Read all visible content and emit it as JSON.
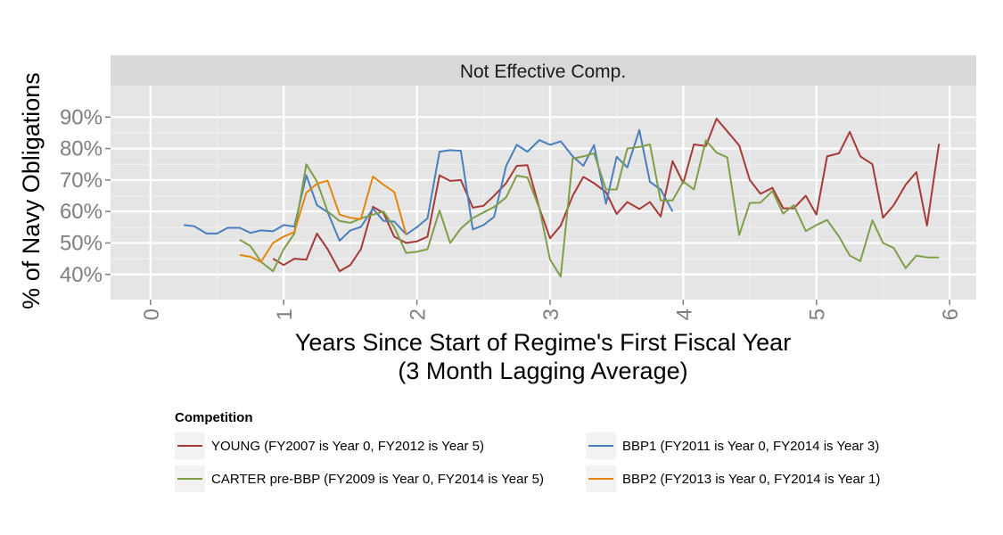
{
  "chart_data": {
    "type": "line",
    "facet_title": "Not Effective Comp.",
    "xlabel_line1": "Years Since Start of Regime's First Fiscal Year",
    "xlabel_line2": "(3 Month Lagging Average)",
    "ylabel": "% of Navy Obligations",
    "xlim": [
      -0.3,
      6.2
    ],
    "ylim": [
      0.32,
      1.0
    ],
    "x_ticks": [
      0,
      1,
      2,
      3,
      4,
      5,
      6
    ],
    "x_tick_labels": [
      "0",
      "1",
      "2",
      "3",
      "4",
      "5",
      "6"
    ],
    "y_ticks": [
      0.4,
      0.5,
      0.6,
      0.7,
      0.8,
      0.9
    ],
    "y_tick_labels": [
      "40%",
      "50%",
      "60%",
      "70%",
      "80%",
      "90%"
    ],
    "grid": true,
    "legend_position": "bottom",
    "legend_title": "Competition",
    "series": [
      {
        "name": "YOUNG (FY2007 is Year 0, FY2012 is Year 5)",
        "color": "#a63a36",
        "x": [
          0.92,
          1.0,
          1.08,
          1.17,
          1.25,
          1.33,
          1.42,
          1.5,
          1.58,
          1.67,
          1.75,
          1.83,
          1.92,
          2.0,
          2.08,
          2.17,
          2.25,
          2.33,
          2.42,
          2.5,
          2.58,
          2.67,
          2.75,
          2.83,
          2.92,
          3.0,
          3.08,
          3.17,
          3.25,
          3.33,
          3.42,
          3.5,
          3.58,
          3.67,
          3.75,
          3.83,
          3.92,
          4.0,
          4.08,
          4.17,
          4.25,
          4.33,
          4.42,
          4.5,
          4.58,
          4.67,
          4.75,
          4.83,
          4.92,
          5.0,
          5.08,
          5.17,
          5.25,
          5.33,
          5.42,
          5.5,
          5.58,
          5.67,
          5.75,
          5.83,
          5.92
        ],
        "y": [
          0.45,
          0.43,
          0.45,
          0.447,
          0.53,
          0.48,
          0.41,
          0.43,
          0.48,
          0.615,
          0.595,
          0.52,
          0.5,
          0.505,
          0.52,
          0.715,
          0.697,
          0.7,
          0.612,
          0.618,
          0.65,
          0.69,
          0.745,
          0.747,
          0.61,
          0.515,
          0.555,
          0.65,
          0.71,
          0.69,
          0.661,
          0.592,
          0.63,
          0.608,
          0.63,
          0.584,
          0.76,
          0.69,
          0.813,
          0.808,
          0.895,
          0.855,
          0.81,
          0.7,
          0.656,
          0.675,
          0.61,
          0.61,
          0.65,
          0.59,
          0.775,
          0.785,
          0.853,
          0.775,
          0.75,
          0.58,
          0.62,
          0.685,
          0.725,
          0.555,
          0.815
        ]
      },
      {
        "name": "BBP1 (FY2011 is Year 0, FY2014 is Year 3)",
        "color": "#4a7fbd",
        "x": [
          0.25,
          0.33,
          0.42,
          0.5,
          0.58,
          0.67,
          0.75,
          0.83,
          0.92,
          1.0,
          1.08,
          1.17,
          1.25,
          1.33,
          1.42,
          1.5,
          1.58,
          1.67,
          1.75,
          1.83,
          1.92,
          2.0,
          2.08,
          2.17,
          2.25,
          2.33,
          2.42,
          2.5,
          2.58,
          2.67,
          2.75,
          2.83,
          2.92,
          3.0,
          3.08,
          3.17,
          3.25,
          3.33,
          3.42,
          3.5,
          3.58,
          3.67,
          3.75,
          3.83,
          3.92
        ],
        "y": [
          0.557,
          0.553,
          0.53,
          0.53,
          0.548,
          0.548,
          0.532,
          0.54,
          0.537,
          0.557,
          0.552,
          0.715,
          0.62,
          0.598,
          0.507,
          0.54,
          0.551,
          0.609,
          0.57,
          0.568,
          0.527,
          0.55,
          0.578,
          0.79,
          0.795,
          0.793,
          0.543,
          0.557,
          0.583,
          0.745,
          0.812,
          0.79,
          0.827,
          0.812,
          0.823,
          0.775,
          0.745,
          0.811,
          0.625,
          0.774,
          0.74,
          0.859,
          0.694,
          0.67,
          0.6
        ]
      },
      {
        "name": "CARTER pre-BBP (FY2009 is Year 0, FY2014 is Year 5)",
        "color": "#7f9e48",
        "x": [
          0.67,
          0.75,
          0.83,
          0.92,
          1.0,
          1.08,
          1.17,
          1.25,
          1.33,
          1.42,
          1.5,
          1.58,
          1.67,
          1.75,
          1.83,
          1.92,
          2.0,
          2.08,
          2.17,
          2.25,
          2.33,
          2.42,
          2.5,
          2.58,
          2.67,
          2.75,
          2.83,
          2.92,
          3.0,
          3.08,
          3.17,
          3.25,
          3.33,
          3.42,
          3.5,
          3.58,
          3.67,
          3.75,
          3.83,
          3.92,
          4.0,
          4.08,
          4.17,
          4.25,
          4.33,
          4.42,
          4.5,
          4.58,
          4.67,
          4.75,
          4.83,
          4.92,
          5.0,
          5.08,
          5.17,
          5.25,
          5.33,
          5.42,
          5.5,
          5.58,
          5.67,
          5.75,
          5.83,
          5.92
        ],
        "y": [
          0.51,
          0.49,
          0.44,
          0.41,
          0.48,
          0.53,
          0.75,
          0.695,
          0.6,
          0.57,
          0.564,
          0.578,
          0.59,
          0.6,
          0.55,
          0.468,
          0.472,
          0.48,
          0.603,
          0.5,
          0.546,
          0.579,
          0.597,
          0.614,
          0.645,
          0.714,
          0.708,
          0.61,
          0.447,
          0.393,
          0.768,
          0.775,
          0.785,
          0.67,
          0.67,
          0.8,
          0.805,
          0.813,
          0.635,
          0.635,
          0.695,
          0.67,
          0.826,
          0.787,
          0.772,
          0.525,
          0.627,
          0.628,
          0.665,
          0.593,
          0.62,
          0.538,
          0.557,
          0.573,
          0.52,
          0.46,
          0.442,
          0.572,
          0.5,
          0.484,
          0.42,
          0.46,
          0.454,
          0.454
        ]
      },
      {
        "name": "BBP2 (FY2013 is Year 0, FY2014 is Year 1)",
        "color": "#e2870d",
        "x": [
          0.67,
          0.75,
          0.83,
          0.92,
          1.0,
          1.08,
          1.17,
          1.25,
          1.33,
          1.42,
          1.5,
          1.58,
          1.67,
          1.75,
          1.83,
          1.92
        ],
        "y": [
          0.462,
          0.456,
          0.44,
          0.5,
          0.52,
          0.535,
          0.66,
          0.688,
          0.698,
          0.59,
          0.58,
          0.576,
          0.711,
          0.685,
          0.662,
          0.526
        ]
      }
    ]
  }
}
